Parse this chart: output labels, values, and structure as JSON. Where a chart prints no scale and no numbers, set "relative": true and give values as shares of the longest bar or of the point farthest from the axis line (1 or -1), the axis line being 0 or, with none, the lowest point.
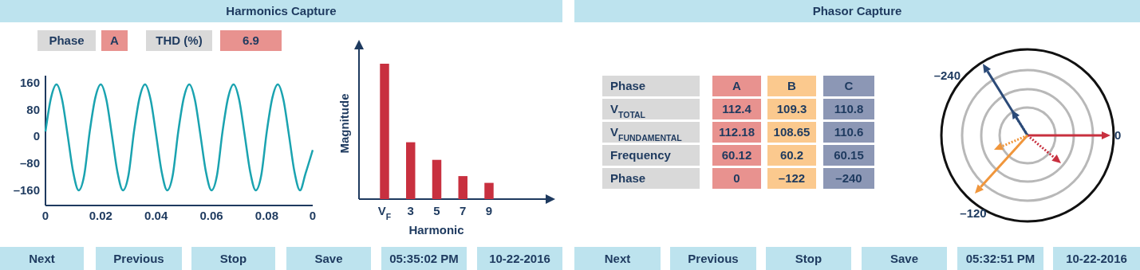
{
  "chart_data": [
    {
      "type": "other",
      "title": "Harmonics Capture",
      "annotations": [
        "Phase",
        "A",
        "THD (%)",
        "6.9"
      ],
      "colors": [
        "#d9d9d9",
        "#e8928f",
        "#d9d9d9",
        "#e8928f"
      ]
    },
    {
      "type": "line",
      "color": "#1aa3b0",
      "x": [
        0,
        0.002,
        0.004,
        0.006,
        0.008,
        0.01,
        0.012,
        0.014,
        0.016,
        0.018,
        0.02,
        0.022,
        0.024,
        0.026,
        0.028,
        0.03,
        0.032,
        0.034,
        0.036,
        0.038,
        0.04,
        0.042,
        0.044,
        0.046,
        0.048,
        0.05,
        0.052,
        0.054,
        0.056,
        0.058,
        0.06,
        0.062,
        0.064,
        0.066,
        0.068,
        0.07,
        0.072,
        0.074,
        0.076,
        0.078,
        0.08,
        0.082,
        0.084,
        0.086,
        0.088,
        0.09,
        0.092,
        0.094,
        0.0966
      ],
      "values": [
        15,
        115,
        155,
        110,
        5,
        -105,
        -160,
        -115,
        15,
        115,
        155,
        110,
        5,
        -105,
        -160,
        -115,
        15,
        115,
        155,
        110,
        5,
        -105,
        -160,
        -115,
        15,
        115,
        155,
        110,
        5,
        -105,
        -160,
        -115,
        15,
        115,
        155,
        110,
        5,
        -105,
        -160,
        -115,
        15,
        115,
        155,
        110,
        5,
        -105,
        -160,
        -110,
        -40
      ],
      "xlim": [
        0,
        0.0966
      ],
      "xticks": [
        0,
        0.02,
        0.04,
        0.06,
        0.08,
        {
          "value": 0.0966,
          "label": "0"
        }
      ],
      "ylim": [
        -205,
        181
      ],
      "yticks": [
        {
          "value": -160,
          "label": "–160"
        },
        {
          "value": -80,
          "label": "–80"
        },
        0,
        80,
        160
      ]
    },
    {
      "type": "bar",
      "relative": true,
      "categories": [
        "V$_{F}$",
        "3",
        "5",
        "7",
        "9"
      ],
      "values": [
        1,
        0.42,
        0.29,
        0.17,
        0.12
      ],
      "color": "#c8303f",
      "xlabel": "Harmonic",
      "ylabel": "Magnitude"
    },
    {
      "type": "other",
      "title": "Phasor Capture",
      "colors": [
        "#d9d9d9",
        "#e8928f",
        "#fbc98e",
        "#8c97b5"
      ],
      "annotations": [
        "Phase",
        "A",
        "B",
        "C",
        "V$_{TOTAL}$",
        "112.4",
        "109.3",
        "110.8",
        "V$_{FUNDAMENTAL}$",
        "112.18",
        "108.65",
        "110.6",
        "Frequency",
        "60.12",
        "60.2",
        "60.15",
        "Phase",
        "0",
        "–122",
        "–240"
      ]
    },
    {
      "type": "other",
      "annotations": [
        "–240",
        "0",
        "–120"
      ]
    },
    {
      "type": "other",
      "annotations": [
        "Next",
        "Previous",
        "Stop",
        "Save",
        "05:35:02 PM",
        "10-22-2016",
        "Next",
        "Previous",
        "Stop",
        "Save",
        "05:32:51 PM",
        "10-22-2016"
      ]
    }
  ]
}
